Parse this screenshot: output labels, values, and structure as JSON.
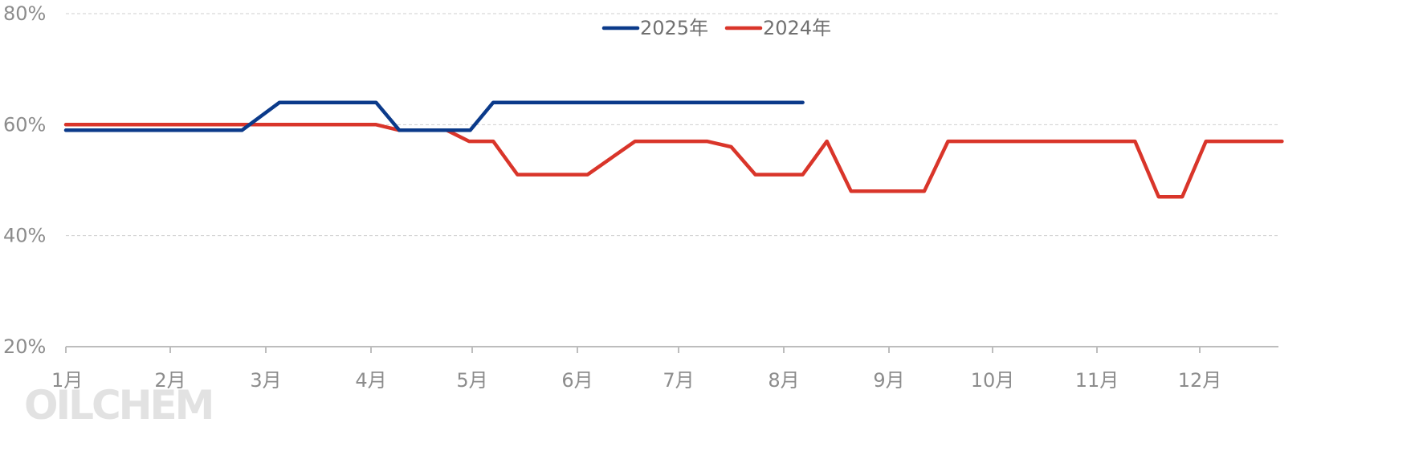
{
  "chart_data": {
    "type": "line",
    "y_ticks": [
      "80%",
      "60%",
      "40%",
      "20%"
    ],
    "y_tick_values": [
      80,
      60,
      40,
      20
    ],
    "ylim": [
      20,
      80
    ],
    "categories": [
      "1月",
      "2月",
      "3月",
      "4月",
      "5月",
      "6月",
      "7月",
      "8月",
      "9月",
      "10月",
      "11月",
      "12月"
    ],
    "grid": "horizontal dashed",
    "legend_position": "top-center",
    "series": [
      {
        "name": "2025年",
        "color": "#0b3a8a",
        "points": [
          [
            1.0,
            59
          ],
          [
            2.75,
            59
          ],
          [
            3.13,
            64
          ],
          [
            4.05,
            64
          ],
          [
            4.28,
            59
          ],
          [
            4.98,
            59
          ],
          [
            5.2,
            64
          ],
          [
            8.18,
            64
          ]
        ]
      },
      {
        "name": "2024年",
        "color": "#d9352a",
        "points": [
          [
            1.0,
            60
          ],
          [
            4.05,
            60
          ],
          [
            4.28,
            59
          ],
          [
            4.75,
            59
          ],
          [
            4.97,
            57
          ],
          [
            5.2,
            57
          ],
          [
            5.43,
            51
          ],
          [
            6.1,
            51
          ],
          [
            6.57,
            57
          ],
          [
            7.27,
            57
          ],
          [
            7.5,
            56
          ],
          [
            7.73,
            51
          ],
          [
            8.18,
            51
          ],
          [
            8.41,
            57
          ],
          [
            8.64,
            48
          ],
          [
            9.34,
            48
          ],
          [
            9.57,
            57
          ],
          [
            11.37,
            57
          ],
          [
            11.6,
            47
          ],
          [
            11.83,
            47
          ],
          [
            12.06,
            57
          ],
          [
            12.8,
            57
          ]
        ]
      }
    ]
  },
  "watermark": "OILCHEM"
}
